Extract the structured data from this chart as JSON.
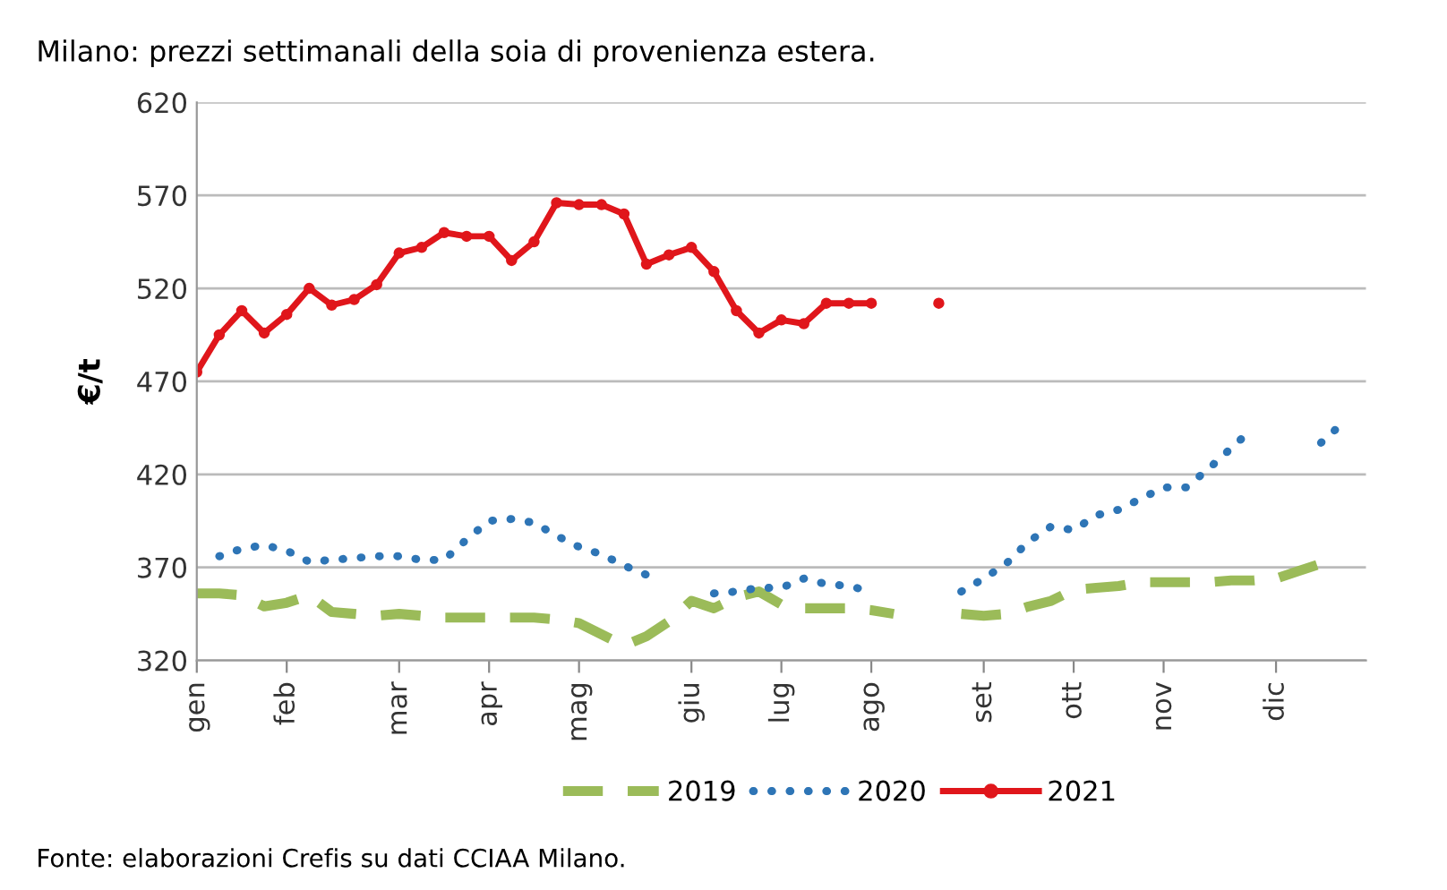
{
  "chart_data": {
    "type": "line",
    "title": "Milano: prezzi settimanali della soia di provenienza estera.",
    "ylabel": "€/t",
    "categories": [
      "gen",
      null,
      null,
      null,
      "feb",
      null,
      null,
      null,
      null,
      "mar",
      null,
      null,
      null,
      "apr",
      null,
      null,
      null,
      "mag",
      null,
      null,
      null,
      null,
      "giu",
      null,
      null,
      null,
      "lug",
      null,
      null,
      null,
      "ago",
      null,
      null,
      null,
      null,
      "set",
      null,
      null,
      null,
      "ott",
      null,
      null,
      null,
      "nov",
      null,
      null,
      null,
      null,
      "dic",
      null,
      null,
      null
    ],
    "ylim": [
      320,
      620
    ],
    "yticks": [
      320,
      370,
      420,
      470,
      520,
      570,
      620
    ],
    "grid": "y",
    "legend": "bottom",
    "annotations": [
      "Fonte: elaborazioni Crefis su dati CCIAA Milano."
    ],
    "series": [
      {
        "name": "2019",
        "color": "#9bbb59",
        "line_style": "dashed",
        "marker": "none",
        "values": [
          356,
          356,
          355,
          349,
          351,
          355,
          346,
          345,
          344,
          345,
          344,
          343,
          343,
          343,
          343,
          343,
          342,
          340,
          334,
          328,
          333,
          341,
          352,
          348,
          354,
          357,
          350,
          348,
          348,
          348,
          347,
          345,
          null,
          null,
          345,
          344,
          345,
          349,
          352,
          358,
          359,
          360,
          362,
          362,
          362,
          362,
          363,
          363,
          364,
          368,
          372,
          null
        ]
      },
      {
        "name": "2020",
        "color": "#2e75b6",
        "line_style": "dotted",
        "marker": "none",
        "values": [
          null,
          376,
          380,
          382,
          379,
          373,
          374,
          375,
          376,
          376,
          374,
          374,
          385,
          395,
          396,
          394,
          387,
          381,
          377,
          371,
          366,
          null,
          null,
          356,
          357,
          359,
          359,
          364,
          361,
          360,
          357,
          null,
          null,
          null,
          357,
          364,
          372,
          384,
          392,
          390,
          398,
          401,
          407,
          413,
          413,
          423,
          434,
          445,
          null,
          null,
          437,
          448
        ]
      },
      {
        "name": "2021",
        "color": "#e0161b",
        "line_style": "solid",
        "marker": "circle",
        "values": [
          475,
          495,
          508,
          496,
          506,
          520,
          511,
          514,
          522,
          539,
          542,
          550,
          548,
          548,
          535,
          545,
          566,
          565,
          565,
          560,
          533,
          538,
          542,
          529,
          508,
          496,
          503,
          501,
          512,
          512,
          512,
          null,
          null,
          512,
          null,
          null,
          null,
          null,
          null,
          null,
          null,
          null,
          null,
          null,
          null,
          null,
          null,
          null,
          null,
          null,
          null,
          null
        ]
      }
    ]
  }
}
